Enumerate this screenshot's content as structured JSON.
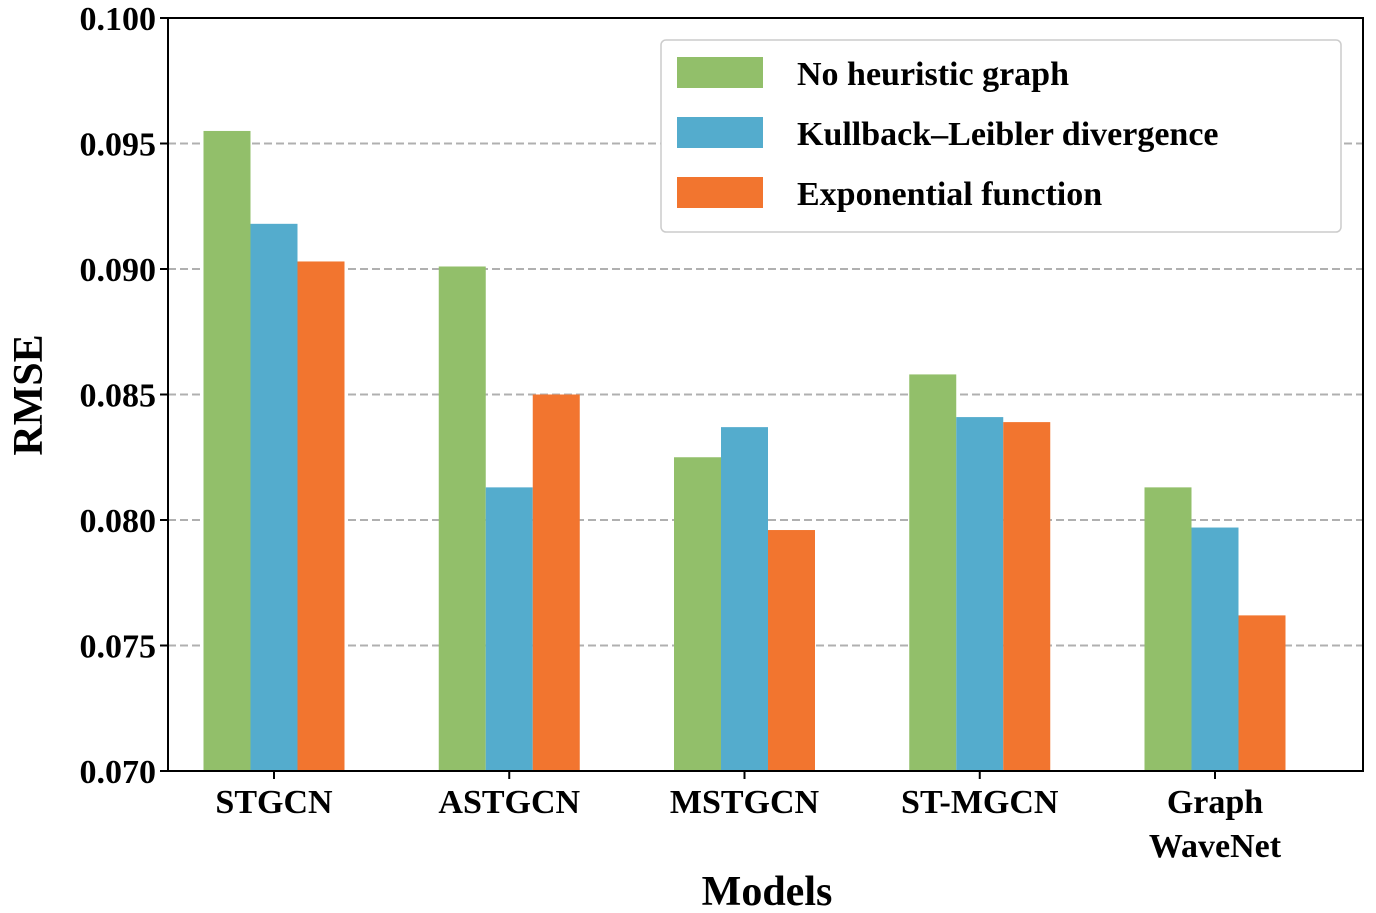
{
  "chart_data": {
    "type": "bar",
    "categories": [
      [
        "STGCN"
      ],
      [
        "ASTGCN"
      ],
      [
        "MSTGCN"
      ],
      [
        "ST-MGCN"
      ],
      [
        "Graph",
        "WaveNet"
      ]
    ],
    "series": [
      {
        "name": "No heuristic graph",
        "color": "#92bf6a",
        "values": [
          0.0955,
          0.0901,
          0.0825,
          0.0858,
          0.0813
        ]
      },
      {
        "name": "Kullback–Leibler divergence",
        "color": "#54accd",
        "values": [
          0.0918,
          0.0813,
          0.0837,
          0.0841,
          0.0797
        ]
      },
      {
        "name": "Exponential function",
        "color": "#f2752f",
        "values": [
          0.0903,
          0.085,
          0.0796,
          0.0839,
          0.0762
        ]
      }
    ],
    "xlabel": "Models",
    "ylabel": "RMSE",
    "ylim": [
      0.07,
      0.1
    ],
    "yticks": [
      "0.070",
      "0.075",
      "0.080",
      "0.085",
      "0.090",
      "0.095",
      "0.100"
    ],
    "grid": "y-dashed",
    "legend_position": "top-right"
  }
}
